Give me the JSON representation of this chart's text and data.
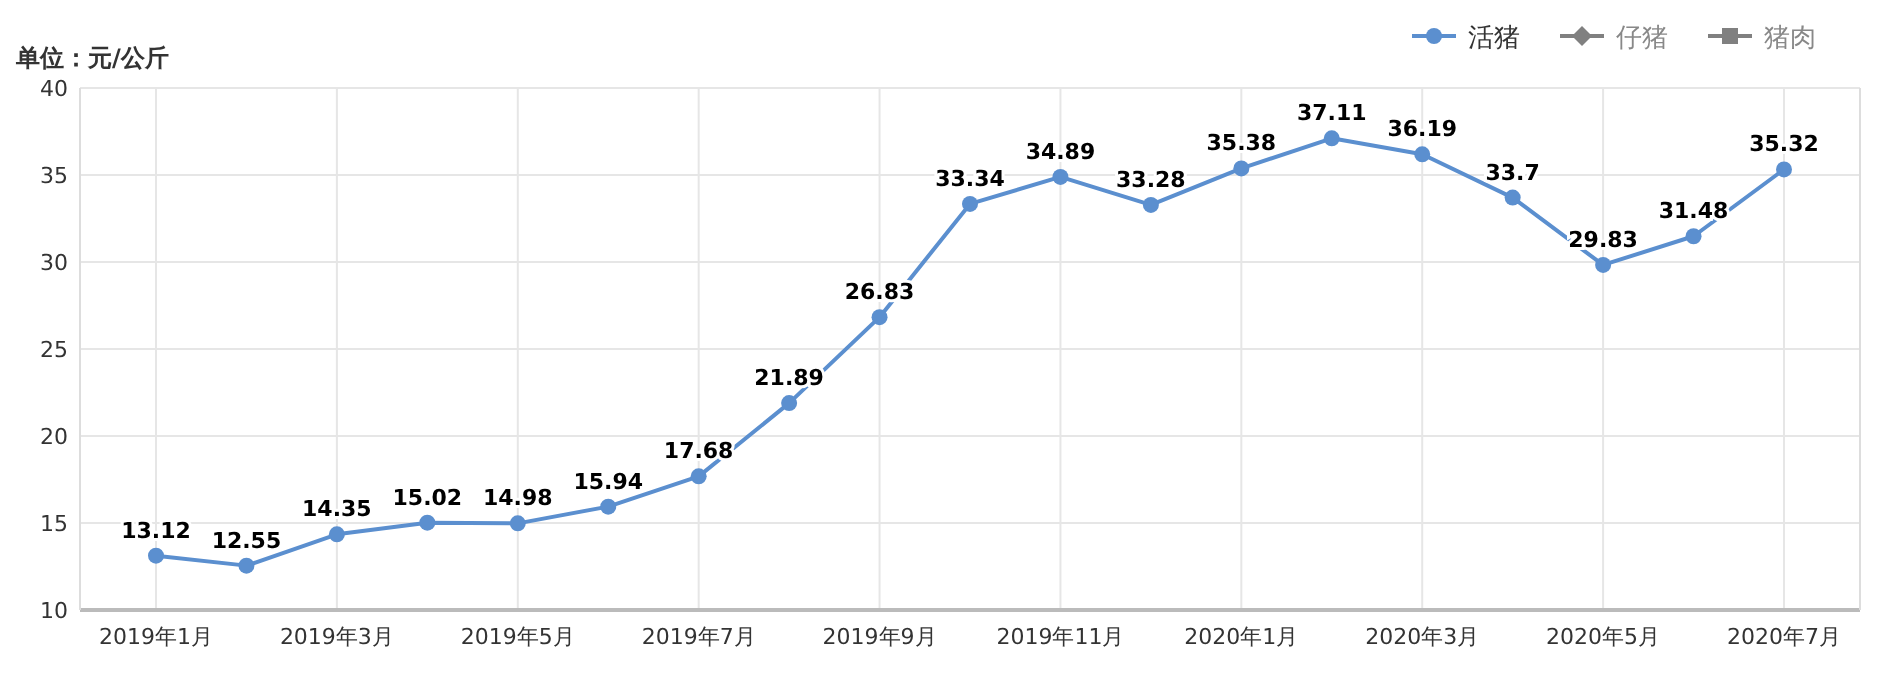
{
  "chart_data": {
    "type": "line",
    "ylabel": "单位：元/公斤",
    "categories": [
      "2019年1月",
      null,
      "2019年3月",
      null,
      "2019年5月",
      null,
      "2019年7月",
      null,
      "2019年9月",
      null,
      "2019年11月",
      null,
      "2020年1月",
      null,
      "2020年3月",
      null,
      "2020年5月",
      null,
      "2020年7月"
    ],
    "series": [
      {
        "name": "活猪",
        "color": "#5b8fcf",
        "marker": "circle",
        "values": [
          13.12,
          12.55,
          14.35,
          15.02,
          14.98,
          15.94,
          17.68,
          21.89,
          26.83,
          33.34,
          34.89,
          33.28,
          35.38,
          37.11,
          36.19,
          33.7,
          29.83,
          31.48,
          35.32
        ]
      },
      {
        "name": "仔猪",
        "color": "#808080",
        "marker": "diamond",
        "values": [
          null,
          null,
          null,
          null,
          null,
          null,
          null,
          null,
          null,
          null,
          null,
          null,
          null,
          null,
          null,
          null,
          null,
          null,
          null
        ]
      },
      {
        "name": "猪肉",
        "color": "#808080",
        "marker": "square",
        "values": [
          null,
          null,
          null,
          null,
          null,
          null,
          null,
          null,
          null,
          null,
          null,
          null,
          null,
          null,
          null,
          null,
          null,
          null,
          null
        ]
      }
    ],
    "ylim": [
      10,
      40
    ],
    "yticks": [
      10,
      15,
      20,
      25,
      30,
      35,
      40
    ],
    "grid": true,
    "legend": "top right",
    "data_labels": true,
    "line_style": "solid"
  }
}
